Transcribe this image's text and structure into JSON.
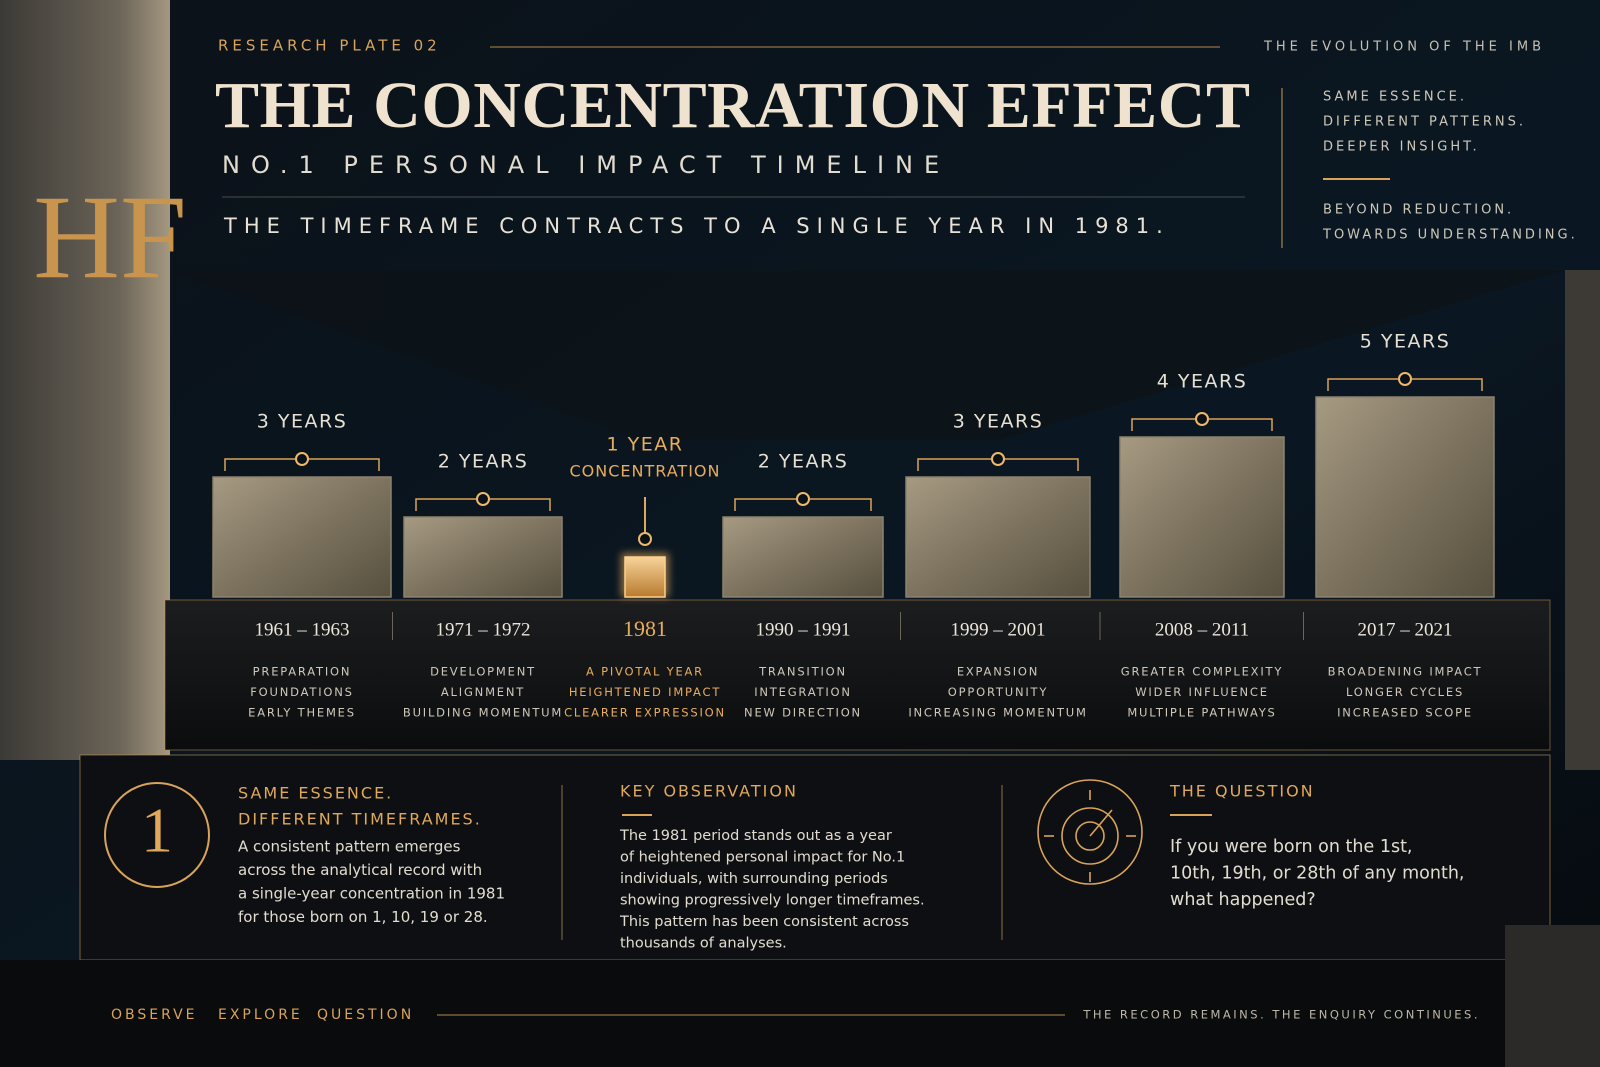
{
  "header": {
    "plate": "RESEARCH PLATE 02",
    "series": "THE EVOLUTION OF THE IMB",
    "logo": "HF",
    "title": "THE CONCENTRATION EFFECT",
    "subtitle": "NO.1 PERSONAL IMPACT TIMELINE",
    "statement": "THE TIMEFRAME CONTRACTS TO A SINGLE YEAR IN 1981.",
    "side_notes": [
      [
        "SAME ESSENCE.",
        "DIFFERENT PATTERNS.",
        "DEEPER INSIGHT."
      ],
      [
        "BEYOND REDUCTION.",
        "TOWARDS UNDERSTANDING."
      ]
    ]
  },
  "chart_data": {
    "type": "bar",
    "categories": [
      "1961 – 1963",
      "1971 – 1972",
      "1981",
      "1990 – 1991",
      "1999 – 2001",
      "2008 – 2011",
      "2017 – 2021"
    ],
    "values": [
      3,
      2,
      1,
      2,
      3,
      4,
      5
    ],
    "value_labels": [
      "3 YEARS",
      "2 YEARS",
      "1 YEAR",
      "2 YEARS",
      "3 YEARS",
      "4 YEARS",
      "5 YEARS"
    ],
    "annotation": "CONCENTRATION",
    "highlight": 2,
    "color": "#8c826f",
    "highlight_color": "#e0a85a",
    "descriptions": [
      [
        "PREPARATION",
        "FOUNDATIONS",
        "EARLY THEMES"
      ],
      [
        "DEVELOPMENT",
        "ALIGNMENT",
        "BUILDING MOMENTUM"
      ],
      [
        "A PIVOTAL YEAR",
        "HEIGHTENED IMPACT",
        "CLEARER EXPRESSION"
      ],
      [
        "TRANSITION",
        "INTEGRATION",
        "NEW DIRECTION"
      ],
      [
        "EXPANSION",
        "OPPORTUNITY",
        "INCREASING MOMENTUM"
      ],
      [
        "GREATER COMPLEXITY",
        "WIDER INFLUENCE",
        "MULTIPLE PATHWAYS"
      ],
      [
        "BROADENING IMPACT",
        "LONGER CYCLES",
        "INCREASED SCOPE"
      ]
    ]
  },
  "panels": [
    {
      "number": "1",
      "heading": [
        "SAME ESSENCE.",
        "DIFFERENT TIMEFRAMES."
      ],
      "body": [
        "A consistent pattern emerges",
        "across the analytical record with",
        "a single-year concentration in 1981",
        "for those born on 1, 10, 19 or 28."
      ]
    },
    {
      "heading": [
        "KEY OBSERVATION"
      ],
      "body": [
        "The 1981 period stands out as a year",
        "of heightened personal impact for No.1",
        "individuals, with surrounding periods",
        "showing progressively longer timeframes.",
        "This pattern has been consistent across",
        "thousands of analyses."
      ]
    },
    {
      "heading": [
        "THE QUESTION"
      ],
      "body": [
        "If you were born on the 1st,",
        "10th, 19th, or 28th of any month,",
        "what happened?"
      ]
    }
  ],
  "footer": {
    "nav": [
      "OBSERVE",
      "EXPLORE",
      "QUESTION"
    ],
    "tagline": "THE RECORD REMAINS. THE ENQUIRY CONTINUES."
  }
}
